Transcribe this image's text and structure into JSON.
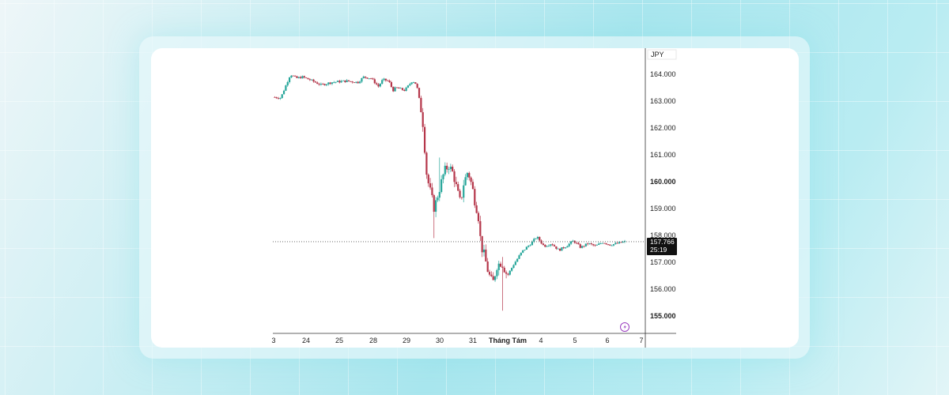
{
  "chart_data": {
    "type": "candlestick",
    "currency": "JPY",
    "ylim": [
      154.7,
      165.0
    ],
    "y_ticks": [
      "164.000",
      "163.000",
      "162.000",
      "161.000",
      "160.000",
      "159.000",
      "158.000",
      "157.000",
      "156.000",
      "155.000"
    ],
    "y_tick_values": [
      164,
      163,
      162,
      161,
      160,
      159,
      158,
      157,
      156,
      155
    ],
    "y_tick_bold": [
      false,
      false,
      false,
      false,
      true,
      false,
      false,
      false,
      false,
      true
    ],
    "x_ticks": [
      "3",
      "24",
      "25",
      "28",
      "29",
      "30",
      "31",
      "Tháng Tám",
      "4",
      "5",
      "6",
      "7"
    ],
    "x_tick_bold": [
      false,
      false,
      false,
      false,
      false,
      false,
      false,
      true,
      false,
      false,
      false,
      false
    ],
    "current_price": "157.766",
    "current_price_value": 157.766,
    "countdown": "25:19",
    "colors": {
      "up": "#26a69a",
      "down": "#b5364a",
      "price_badge": "#111111"
    },
    "path_points": [
      [
        0,
        163.15
      ],
      [
        0.05,
        163.12
      ],
      [
        0.06,
        163.2
      ],
      [
        0.09,
        163.6
      ],
      [
        0.12,
        164.0
      ],
      [
        0.16,
        163.85
      ],
      [
        0.2,
        163.9
      ],
      [
        0.25,
        163.8
      ],
      [
        0.33,
        163.6
      ],
      [
        0.4,
        163.7
      ],
      [
        0.5,
        163.75
      ],
      [
        0.58,
        163.7
      ],
      [
        0.62,
        163.9
      ],
      [
        0.67,
        163.85
      ],
      [
        0.72,
        163.55
      ],
      [
        0.75,
        163.8
      ],
      [
        0.79,
        163.75
      ],
      [
        0.82,
        163.4
      ],
      [
        0.84,
        163.5
      ],
      [
        0.9,
        163.4
      ],
      [
        0.95,
        163.75
      ],
      [
        0.97,
        163.7
      ],
      [
        0.99,
        163.4
      ],
      [
        1.0,
        163.0
      ],
      [
        1.02,
        162.4
      ],
      [
        1.05,
        160.2
      ],
      [
        1.08,
        159.5
      ],
      [
        1.1,
        159.0
      ],
      [
        1.13,
        159.6
      ],
      [
        1.17,
        160.4
      ],
      [
        1.2,
        160.6
      ],
      [
        1.23,
        160.3
      ],
      [
        1.26,
        159.6
      ],
      [
        1.28,
        159.2
      ],
      [
        1.3,
        159.9
      ],
      [
        1.33,
        160.4
      ],
      [
        1.36,
        159.8
      ],
      [
        1.38,
        159.2
      ],
      [
        1.4,
        158.8
      ],
      [
        1.42,
        157.6
      ],
      [
        1.44,
        157.3
      ],
      [
        1.47,
        156.6
      ],
      [
        1.5,
        156.2
      ],
      [
        1.53,
        156.9
      ],
      [
        1.56,
        157.0
      ],
      [
        1.6,
        156.5
      ],
      [
        1.64,
        156.9
      ],
      [
        1.7,
        157.4
      ],
      [
        1.76,
        157.7
      ],
      [
        1.8,
        157.95
      ],
      [
        1.85,
        157.6
      ],
      [
        1.9,
        157.7
      ],
      [
        1.95,
        157.45
      ],
      [
        2.0,
        157.6
      ],
      [
        2.05,
        157.8
      ],
      [
        2.1,
        157.55
      ],
      [
        2.15,
        157.7
      ],
      [
        2.2,
        157.6
      ],
      [
        2.25,
        157.75
      ],
      [
        2.3,
        157.65
      ],
      [
        2.35,
        157.7
      ],
      [
        2.4,
        157.766
      ]
    ],
    "spikes": [
      {
        "at": 1.1,
        "low": 157.9
      },
      {
        "at": 1.57,
        "low": 155.2,
        "high": 157.2
      },
      {
        "at": 1.14,
        "high": 160.9
      }
    ]
  }
}
